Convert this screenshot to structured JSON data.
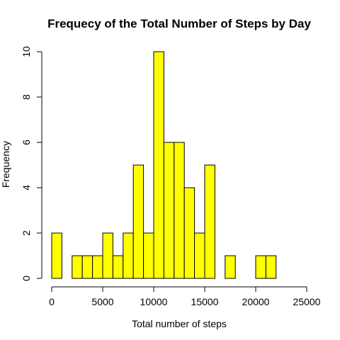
{
  "chart_data": {
    "type": "bar",
    "subtype": "histogram",
    "title": "Frequecy of the Total Number of Steps by Day",
    "xlabel": "Total number of steps",
    "ylabel": "Frequency",
    "bin_width": 1000,
    "bins": [
      {
        "start": 0,
        "end": 1000,
        "count": 2
      },
      {
        "start": 1000,
        "end": 2000,
        "count": 0
      },
      {
        "start": 2000,
        "end": 3000,
        "count": 1
      },
      {
        "start": 3000,
        "end": 4000,
        "count": 1
      },
      {
        "start": 4000,
        "end": 5000,
        "count": 1
      },
      {
        "start": 5000,
        "end": 6000,
        "count": 2
      },
      {
        "start": 6000,
        "end": 7000,
        "count": 1
      },
      {
        "start": 7000,
        "end": 8000,
        "count": 2
      },
      {
        "start": 8000,
        "end": 9000,
        "count": 5
      },
      {
        "start": 9000,
        "end": 10000,
        "count": 2
      },
      {
        "start": 10000,
        "end": 11000,
        "count": 10
      },
      {
        "start": 11000,
        "end": 12000,
        "count": 6
      },
      {
        "start": 12000,
        "end": 13000,
        "count": 6
      },
      {
        "start": 13000,
        "end": 14000,
        "count": 4
      },
      {
        "start": 14000,
        "end": 15000,
        "count": 2
      },
      {
        "start": 15000,
        "end": 16000,
        "count": 5
      },
      {
        "start": 16000,
        "end": 17000,
        "count": 0
      },
      {
        "start": 17000,
        "end": 18000,
        "count": 1
      },
      {
        "start": 18000,
        "end": 19000,
        "count": 0
      },
      {
        "start": 19000,
        "end": 20000,
        "count": 0
      },
      {
        "start": 20000,
        "end": 21000,
        "count": 1
      },
      {
        "start": 21000,
        "end": 22000,
        "count": 1
      }
    ],
    "xlim": [
      0,
      25000
    ],
    "ylim": [
      0,
      10
    ],
    "x_ticks": [
      0,
      5000,
      10000,
      15000,
      20000,
      25000
    ],
    "x_tick_labels": [
      "0",
      "5000",
      "10000",
      "15000",
      "20000",
      "25000"
    ],
    "y_ticks": [
      0,
      2,
      4,
      6,
      8,
      10
    ],
    "y_tick_labels": [
      "0",
      "2",
      "4",
      "6",
      "8",
      "10"
    ],
    "bar_color": "#ffff00",
    "bar_border_color": "#000000",
    "grid": false,
    "legend": "none"
  }
}
